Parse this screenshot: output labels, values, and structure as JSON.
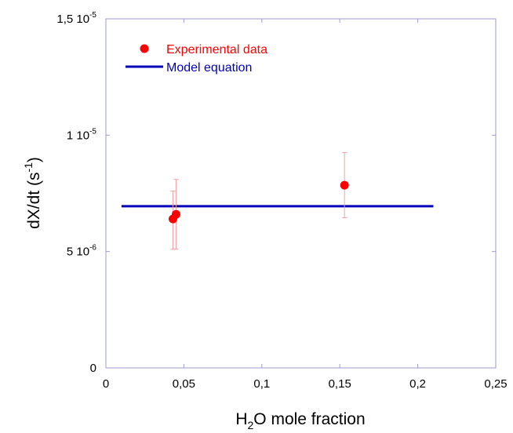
{
  "chart_data": {
    "type": "scatter",
    "title": "",
    "xlabel": {
      "prefix": "H",
      "sub": "2",
      "suffix": "O mole fraction"
    },
    "ylabel": {
      "prefix": "dX/dt (s",
      "sup": "-1",
      "suffix": ")"
    },
    "xlim": [
      0,
      0.25
    ],
    "ylim": [
      0,
      1.5e-05
    ],
    "x_ticks": [
      {
        "value": 0,
        "label": "0"
      },
      {
        "value": 0.05,
        "label": "0,05"
      },
      {
        "value": 0.1,
        "label": "0,1"
      },
      {
        "value": 0.15,
        "label": "0,15"
      },
      {
        "value": 0.2,
        "label": "0,2"
      },
      {
        "value": 0.25,
        "label": "0,25"
      }
    ],
    "y_ticks": [
      {
        "value": 0,
        "mantissa": "0",
        "exp": ""
      },
      {
        "value": 5e-06,
        "mantissa": "5 10",
        "exp": "-6"
      },
      {
        "value": 1e-05,
        "mantissa": "1 10",
        "exp": "-5"
      },
      {
        "value": 1.5e-05,
        "mantissa": "1,5 10",
        "exp": "-5"
      }
    ],
    "grid": false,
    "legend_position": "top-left",
    "series": [
      {
        "name": "Experimental data",
        "kind": "scatter",
        "color": "#ff0000",
        "errorbar_color": "#f4a0a0",
        "points": [
          {
            "x": 0.043,
            "y": 6.4e-06,
            "err_low": 5.1e-06,
            "err_high": 7.6e-06
          },
          {
            "x": 0.045,
            "y": 6.6e-06,
            "err_low": 5.1e-06,
            "err_high": 8.1e-06
          },
          {
            "x": 0.153,
            "y": 7.85e-06,
            "err_low": 6.45e-06,
            "err_high": 9.25e-06
          }
        ]
      },
      {
        "name": "Model equation",
        "kind": "line",
        "color": "#0000bb",
        "x": [
          0.01,
          0.21
        ],
        "y": [
          6.95e-06,
          6.95e-06
        ]
      }
    ]
  }
}
